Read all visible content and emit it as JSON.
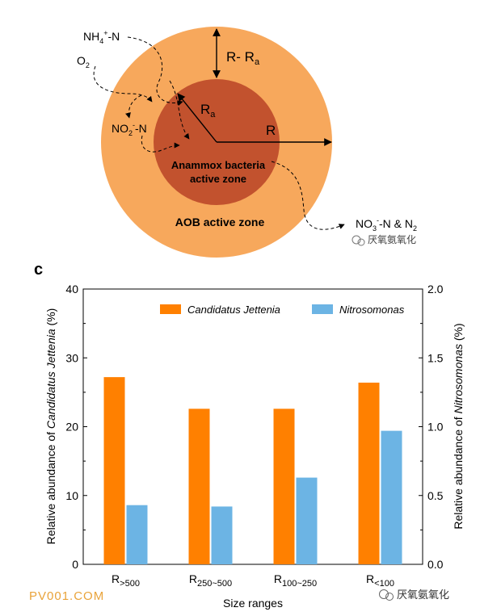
{
  "diagram": {
    "labels": {
      "nh4": "NH",
      "nh4_sub": "4",
      "nh4_sup": "+",
      "nh4_tail": "-N",
      "o2": "O",
      "o2_sub": "2",
      "no2": "NO",
      "no2_sub": "2",
      "no2_sup": "-",
      "no2_tail": "-N",
      "r_minus_ra": "R- R",
      "r_minus_ra_sub": "a",
      "ra": "R",
      "ra_sub": "a",
      "r": "R",
      "anammox_line1": "Anammox bacteria",
      "anammox_line2": "active zone",
      "aob": "AOB active zone",
      "no3": "NO",
      "no3_sub": "3",
      "no3_sup": "-",
      "no3_tail": "-N & N",
      "no3_sub2": "2"
    },
    "colors": {
      "outer": "#f7a85c",
      "inner": "#c2522e"
    }
  },
  "panel_label": "c",
  "chart_data": {
    "type": "bar",
    "categories": [
      {
        "main": "R",
        "sub": ">500"
      },
      {
        "main": "R",
        "sub": "250~500"
      },
      {
        "main": "R",
        "sub": "100~250"
      },
      {
        "main": "R",
        "sub": "<100"
      }
    ],
    "series": [
      {
        "name": "Candidatus Jettenia",
        "axis": "left",
        "color": "#ff8000",
        "values": [
          27.2,
          22.6,
          22.6,
          26.4
        ]
      },
      {
        "name": "Nitrosomonas",
        "axis": "right",
        "color": "#6cb4e4",
        "values": [
          0.43,
          0.42,
          0.63,
          0.97
        ]
      }
    ],
    "xlabel": "Size ranges",
    "ylabel_left": {
      "prefix": "Relative abundance of ",
      "italic": "Candidatus Jettenia",
      "suffix": " (%)"
    },
    "ylabel_right": {
      "prefix": "Relative abundance of ",
      "italic": "Nitrosomonas",
      "suffix": " (%)"
    },
    "ylim_left": [
      0,
      40
    ],
    "ylim_right": [
      0,
      2.0
    ],
    "yticks_left": [
      "0",
      "10",
      "20",
      "30",
      "40"
    ],
    "yticks_right": [
      "0.0",
      "0.5",
      "1.0",
      "1.5",
      "2.0"
    ],
    "grid": false,
    "legend_position": "top"
  },
  "watermarks": {
    "top_right": "厌氧氨氧化",
    "bottom_left": "PV001.COM",
    "bottom_right": "厌氧氨氧化"
  }
}
